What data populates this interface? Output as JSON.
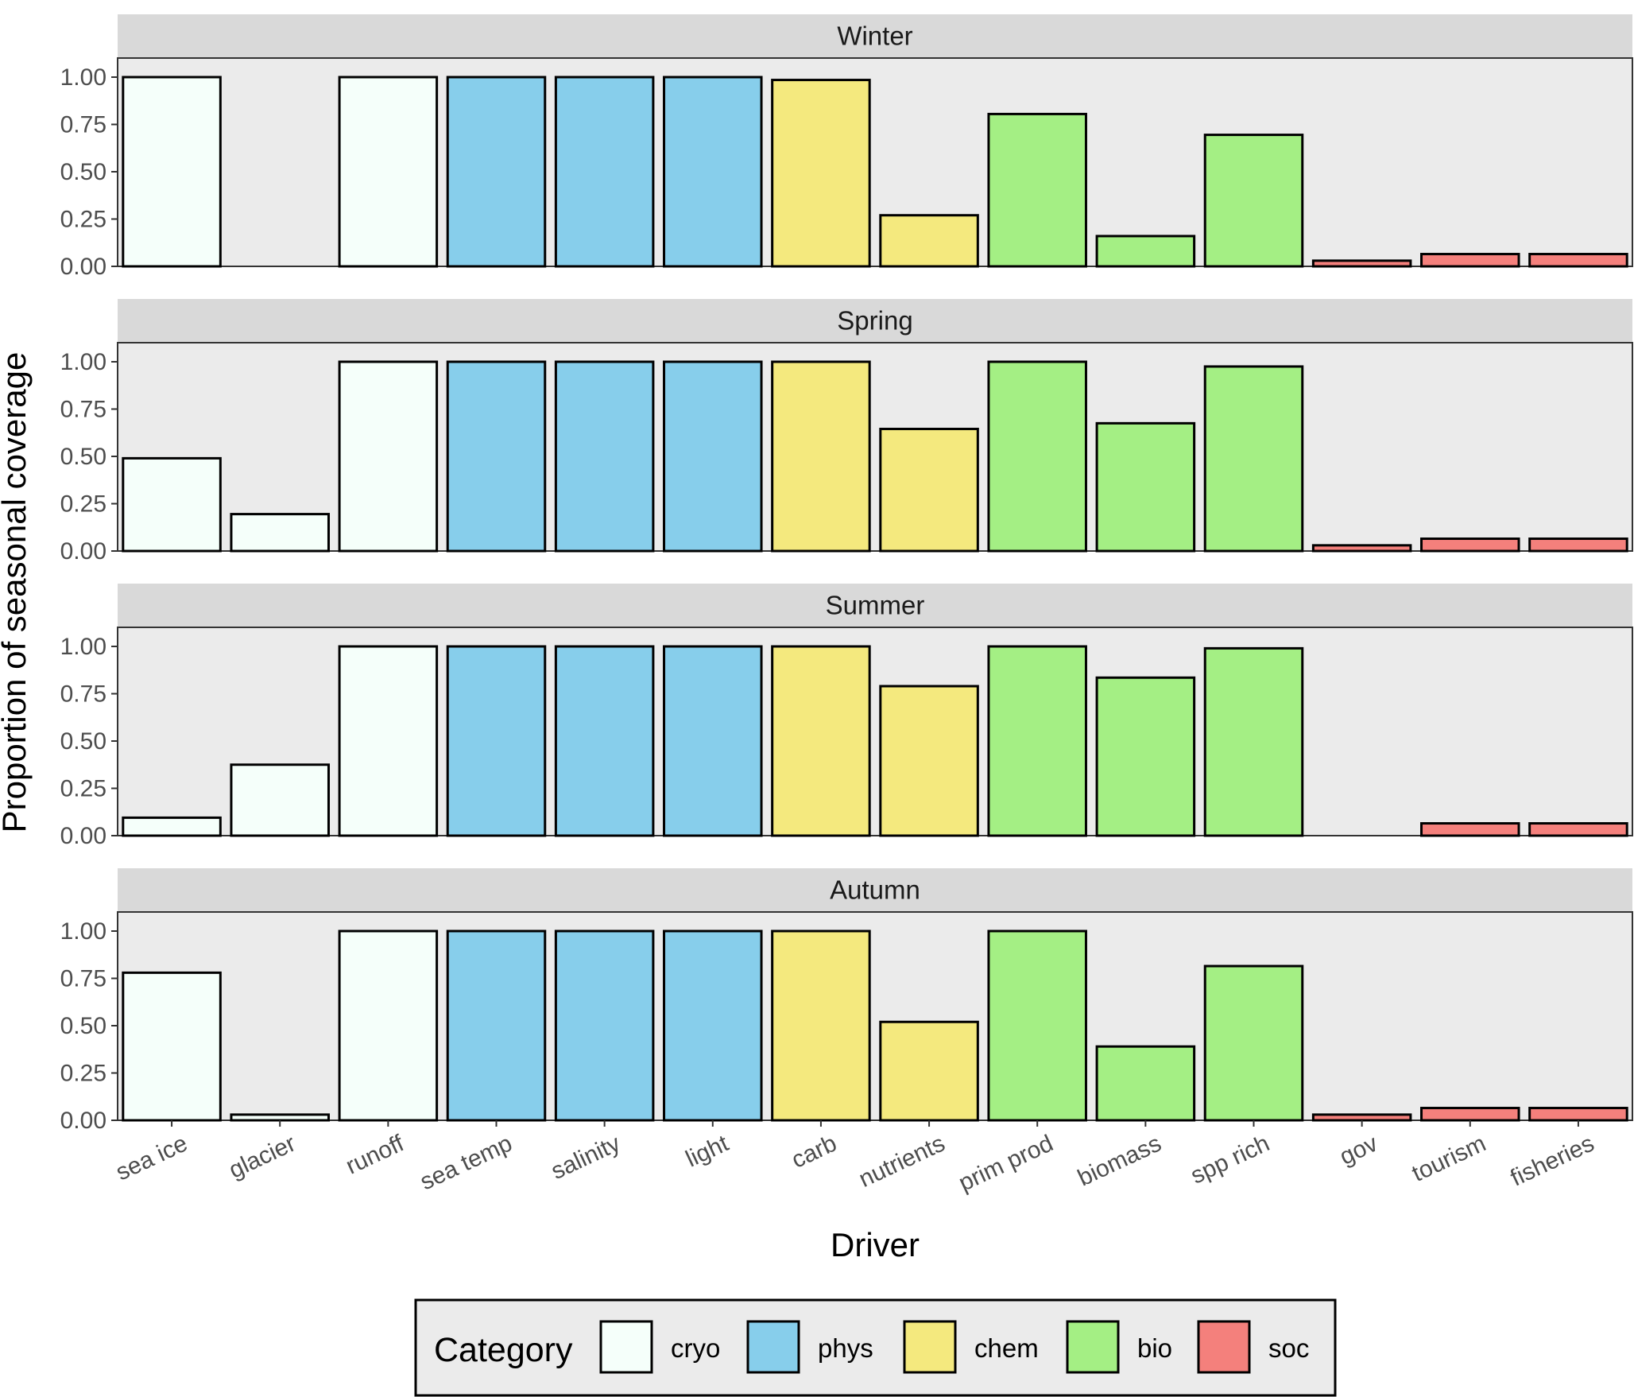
{
  "chart_data": {
    "type": "bar",
    "xlabel": "Driver",
    "ylabel": "Proportion of seasonal coverage",
    "ylim": [
      0,
      1.05
    ],
    "yticks": [
      "0.00",
      "0.25",
      "0.50",
      "0.75",
      "1.00"
    ],
    "categories": [
      "sea ice",
      "glacier",
      "runoff",
      "sea temp",
      "salinity",
      "light",
      "carb",
      "nutrients",
      "prim prod",
      "biomass",
      "spp rich",
      "gov",
      "tourism",
      "fisheries"
    ],
    "category_group": [
      "cryo",
      "cryo",
      "cryo",
      "phys",
      "phys",
      "phys",
      "chem",
      "chem",
      "bio",
      "bio",
      "bio",
      "soc",
      "soc",
      "soc"
    ],
    "panels": [
      {
        "name": "Winter",
        "values": [
          1.0,
          0.0,
          1.0,
          1.0,
          1.0,
          1.0,
          0.985,
          0.27,
          0.805,
          0.16,
          0.695,
          0.03,
          0.065,
          0.065
        ]
      },
      {
        "name": "Spring",
        "values": [
          0.49,
          0.195,
          1.0,
          1.0,
          1.0,
          1.0,
          1.0,
          0.645,
          1.0,
          0.675,
          0.975,
          0.03,
          0.065,
          0.065
        ]
      },
      {
        "name": "Summer",
        "values": [
          0.095,
          0.375,
          1.0,
          1.0,
          1.0,
          1.0,
          1.0,
          0.79,
          1.0,
          0.835,
          0.99,
          0.0,
          0.065,
          0.065
        ]
      },
      {
        "name": "Autumn",
        "values": [
          0.78,
          0.03,
          1.0,
          1.0,
          1.0,
          1.0,
          1.0,
          0.52,
          1.0,
          0.39,
          0.815,
          0.03,
          0.065,
          0.065
        ]
      }
    ],
    "legend": {
      "title": "Category",
      "position": "bottom",
      "items": [
        {
          "key": "cryo",
          "label": "cryo",
          "color": "#F5FFFA"
        },
        {
          "key": "phys",
          "label": "phys",
          "color": "#87CEEB"
        },
        {
          "key": "chem",
          "label": "chem",
          "color": "#F4E97E"
        },
        {
          "key": "bio",
          "label": "bio",
          "color": "#A4EF84"
        },
        {
          "key": "soc",
          "label": "soc",
          "color": "#F4807C"
        }
      ]
    },
    "panel_background": "#EBEBEB",
    "strip_background": "#D9D9D9",
    "grid": false
  }
}
